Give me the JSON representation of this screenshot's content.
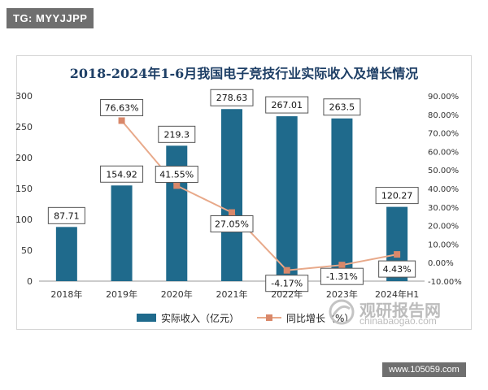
{
  "header": {
    "tag": "TG: MYYJJPP"
  },
  "footer": {
    "site_url": "www.105059.com"
  },
  "watermark": {
    "brand_cn": "观研报告网",
    "brand_en": "chinabaogao.com"
  },
  "colors": {
    "bar": "#1f6a8c",
    "line": "#e8a98a",
    "marker": "#d9886a",
    "title": "#1e3f66"
  },
  "chart_data": {
    "type": "bar",
    "title": "2018-2024年1-6月我国电子竞技行业实际收入及增长情况",
    "categories": [
      "2018年",
      "2019年",
      "2020年",
      "2021年",
      "2022年",
      "2023年",
      "2024年H1"
    ],
    "series": [
      {
        "name": "实际收入（亿元）",
        "type": "bar",
        "axis": "left",
        "values": [
          87.71,
          154.92,
          219.3,
          278.63,
          267.01,
          263.5,
          120.27
        ],
        "labels": [
          "87.71",
          "154.92",
          "219.3",
          "278.63",
          "267.01",
          "263.5",
          "120.27"
        ]
      },
      {
        "name": "同比增长（%）",
        "type": "line",
        "axis": "right",
        "values": [
          null,
          76.63,
          41.55,
          27.05,
          -4.17,
          -1.31,
          4.43
        ],
        "labels": [
          "",
          "76.63%",
          "41.55%",
          "27.05%",
          "-4.17%",
          "-1.31%",
          "4.43%"
        ]
      }
    ],
    "y_left": {
      "min": 0,
      "max": 300,
      "ticks": [
        "0",
        "50",
        "100",
        "150",
        "200",
        "250",
        "300"
      ]
    },
    "y_right": {
      "min": -10,
      "max": 90,
      "ticks": [
        "-10.00%",
        "0.00%",
        "10.00%",
        "20.00%",
        "30.00%",
        "40.00%",
        "50.00%",
        "60.00%",
        "70.00%",
        "80.00%",
        "90.00%"
      ]
    },
    "legend_position": "bottom",
    "grid": false
  }
}
